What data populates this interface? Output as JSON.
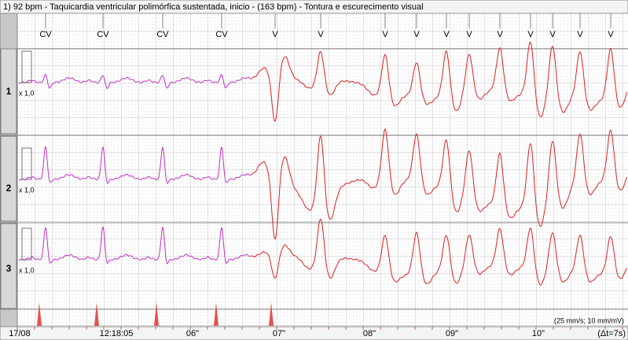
{
  "header": {
    "title": "1) 92 bpm - Taquicardia ventricular polimórfica sustentada, inicio - (163 bpm) - Tontura e escurecimento visual"
  },
  "beat_labels": [
    "CV",
    "CV",
    "CV",
    "CV",
    "V",
    "V",
    "V",
    "V",
    "V",
    "V",
    "V",
    "V",
    "V",
    "V",
    "V"
  ],
  "channels": [
    {
      "label": "1",
      "gain": "x 1,0"
    },
    {
      "label": "2",
      "gain": "x 1,0"
    },
    {
      "label": "3",
      "gain": "x 1,0"
    }
  ],
  "time_axis": {
    "labels": [
      "17/08",
      "12:18:05",
      "06\"",
      "07\"",
      "08\"",
      "09\"",
      "10\""
    ],
    "speed": "(25 mm/s; 10 mm/mV)",
    "interval": "(Δt=7s)"
  }
}
